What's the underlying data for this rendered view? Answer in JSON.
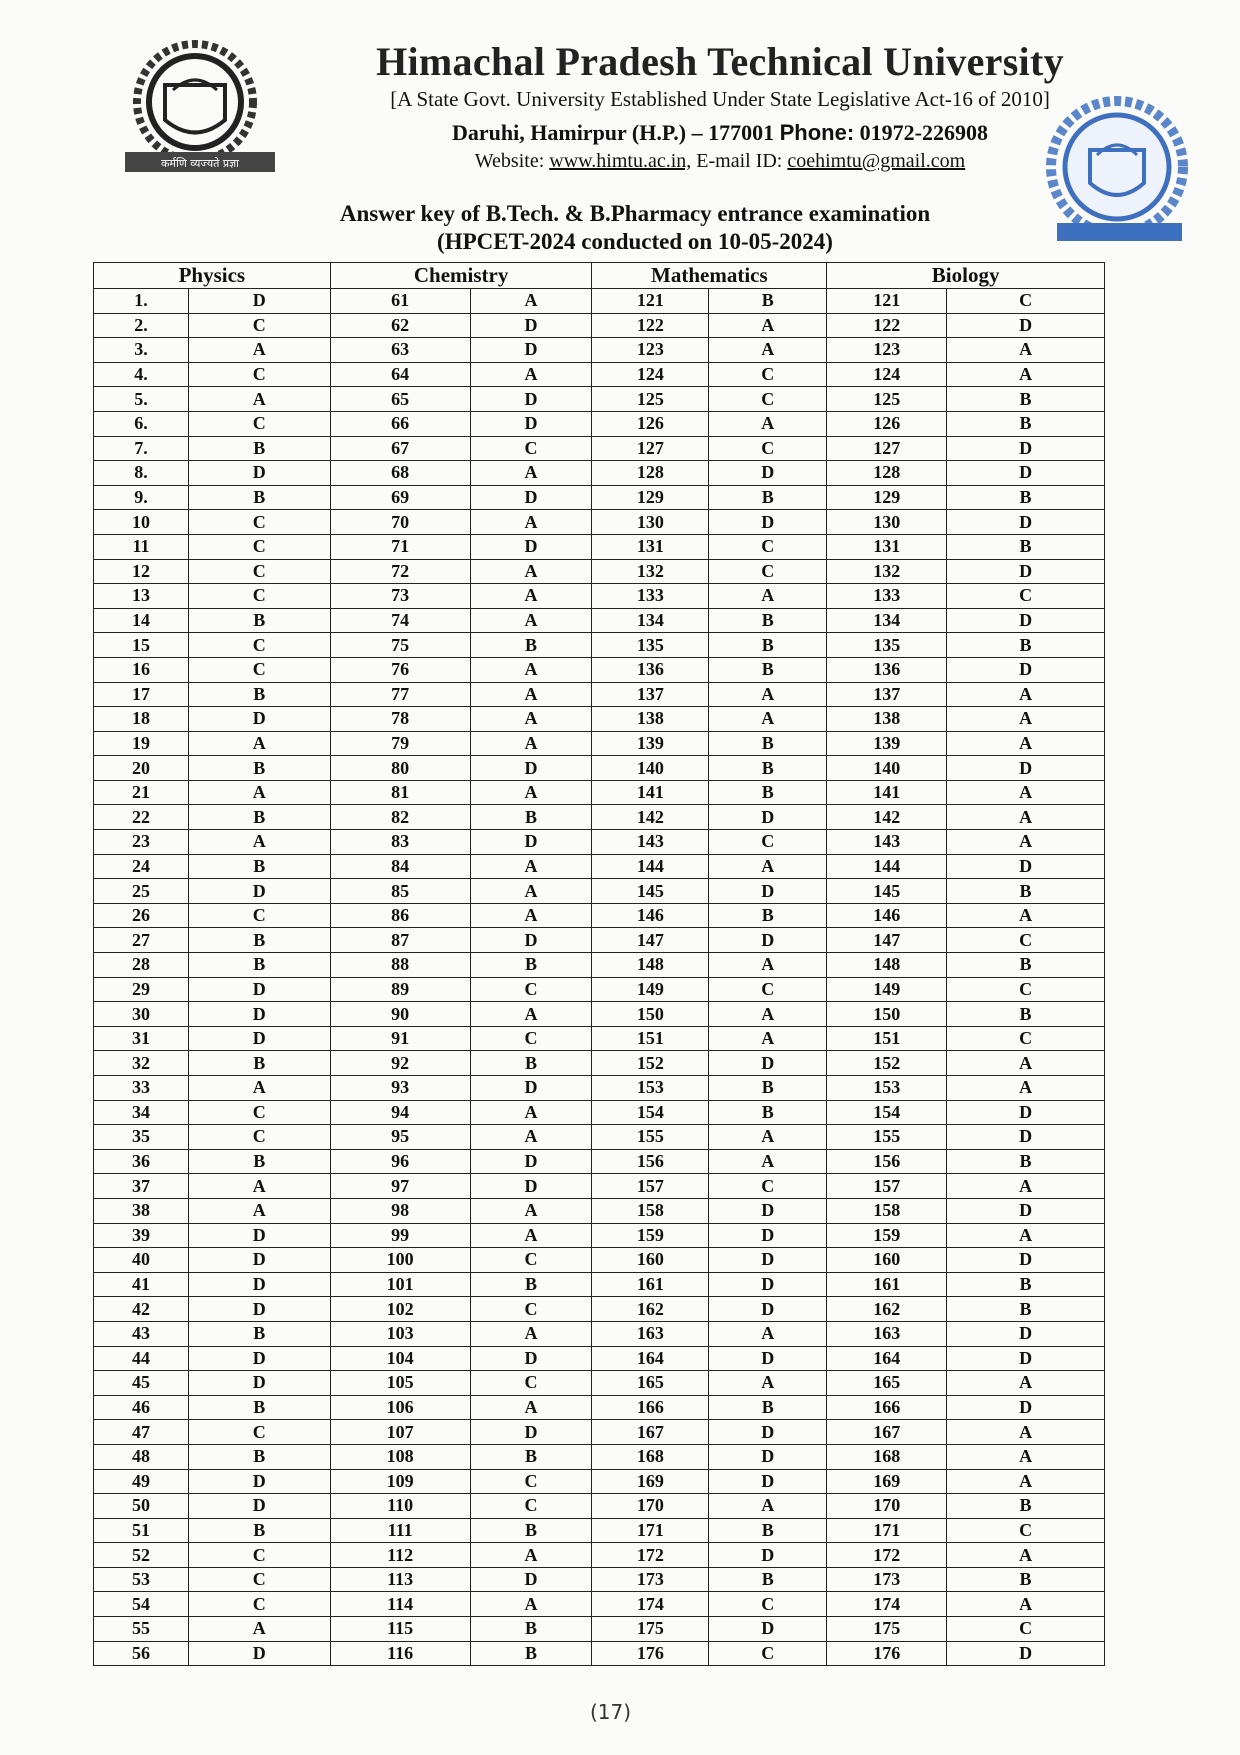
{
  "header": {
    "university": "Himachal Pradesh Technical University",
    "subtitle": "[A State Govt. University Established Under State Legislative Act-16 of 2010]",
    "address": "Daruhi, Hamirpur (H.P.) – 177001",
    "phone_label": "Phone:",
    "phone": "01972-226908",
    "website_label": "Website:",
    "website": "www.himtu.ac.in,",
    "email_label": "E-mail ID:",
    "email": "coehimtu@gmail.com",
    "logo_motto": "कर्मणि व्यज्यते प्रज्ञा"
  },
  "document": {
    "title_line1": "Answer key of B.Tech. & B.Pharmacy entrance examination",
    "title_line2": "(HPCET-2024 conducted on 10-05-2024)"
  },
  "table": {
    "sections": [
      "Physics",
      "Chemistry",
      "Mathematics",
      "Biology"
    ],
    "physics_numbers": [
      "1.",
      "2.",
      "3.",
      "4.",
      "5.",
      "6.",
      "7.",
      "8.",
      "9.",
      "10",
      "11",
      "12",
      "13",
      "14",
      "15",
      "16",
      "17",
      "18",
      "19",
      "20",
      "21",
      "22",
      "23",
      "24",
      "25",
      "26",
      "27",
      "28",
      "29",
      "30",
      "31",
      "32",
      "33",
      "34",
      "35",
      "36",
      "37",
      "38",
      "39",
      "40",
      "41",
      "42",
      "43",
      "44",
      "45",
      "46",
      "47",
      "48",
      "49",
      "50",
      "51",
      "52",
      "53",
      "54",
      "55",
      "56"
    ],
    "physics": [
      "D",
      "C",
      "A",
      "C",
      "A",
      "C",
      "B",
      "D",
      "B",
      "C",
      "C",
      "C",
      "C",
      "B",
      "C",
      "C",
      "B",
      "D",
      "A",
      "B",
      "A",
      "B",
      "A",
      "B",
      "D",
      "C",
      "B",
      "B",
      "D",
      "D",
      "D",
      "B",
      "A",
      "C",
      "C",
      "B",
      "A",
      "A",
      "D",
      "D",
      "D",
      "D",
      "B",
      "D",
      "D",
      "B",
      "C",
      "B",
      "D",
      "D",
      "B",
      "C",
      "C",
      "C",
      "A",
      "D"
    ],
    "chemistry_start": 61,
    "chemistry": [
      "A",
      "D",
      "D",
      "A",
      "D",
      "D",
      "C",
      "A",
      "D",
      "A",
      "D",
      "A",
      "A",
      "A",
      "B",
      "A",
      "A",
      "A",
      "A",
      "D",
      "A",
      "B",
      "D",
      "A",
      "A",
      "A",
      "D",
      "B",
      "C",
      "A",
      "C",
      "B",
      "D",
      "A",
      "A",
      "D",
      "D",
      "A",
      "A",
      "C",
      "B",
      "C",
      "A",
      "D",
      "C",
      "A",
      "D",
      "B",
      "C",
      "C",
      "B",
      "A",
      "D",
      "A",
      "B",
      "B"
    ],
    "mathematics_start": 121,
    "mathematics": [
      "B",
      "A",
      "A",
      "C",
      "C",
      "A",
      "C",
      "D",
      "B",
      "D",
      "C",
      "C",
      "A",
      "B",
      "B",
      "B",
      "A",
      "A",
      "B",
      "B",
      "B",
      "D",
      "C",
      "A",
      "D",
      "B",
      "D",
      "A",
      "C",
      "A",
      "A",
      "D",
      "B",
      "B",
      "A",
      "A",
      "C",
      "D",
      "D",
      "D",
      "D",
      "D",
      "A",
      "D",
      "A",
      "B",
      "D",
      "D",
      "D",
      "A",
      "B",
      "D",
      "B",
      "C",
      "D",
      "C"
    ],
    "biology_start": 121,
    "biology": [
      "C",
      "D",
      "A",
      "A",
      "B",
      "B",
      "D",
      "D",
      "B",
      "D",
      "B",
      "D",
      "C",
      "D",
      "B",
      "D",
      "A",
      "A",
      "A",
      "D",
      "A",
      "A",
      "A",
      "D",
      "B",
      "A",
      "C",
      "B",
      "C",
      "B",
      "C",
      "A",
      "A",
      "D",
      "D",
      "B",
      "A",
      "D",
      "A",
      "D",
      "B",
      "B",
      "D",
      "D",
      "A",
      "D",
      "A",
      "A",
      "A",
      "B",
      "C",
      "A",
      "B",
      "A",
      "C",
      "D"
    ]
  },
  "footer": {
    "page_number": "(17)"
  }
}
